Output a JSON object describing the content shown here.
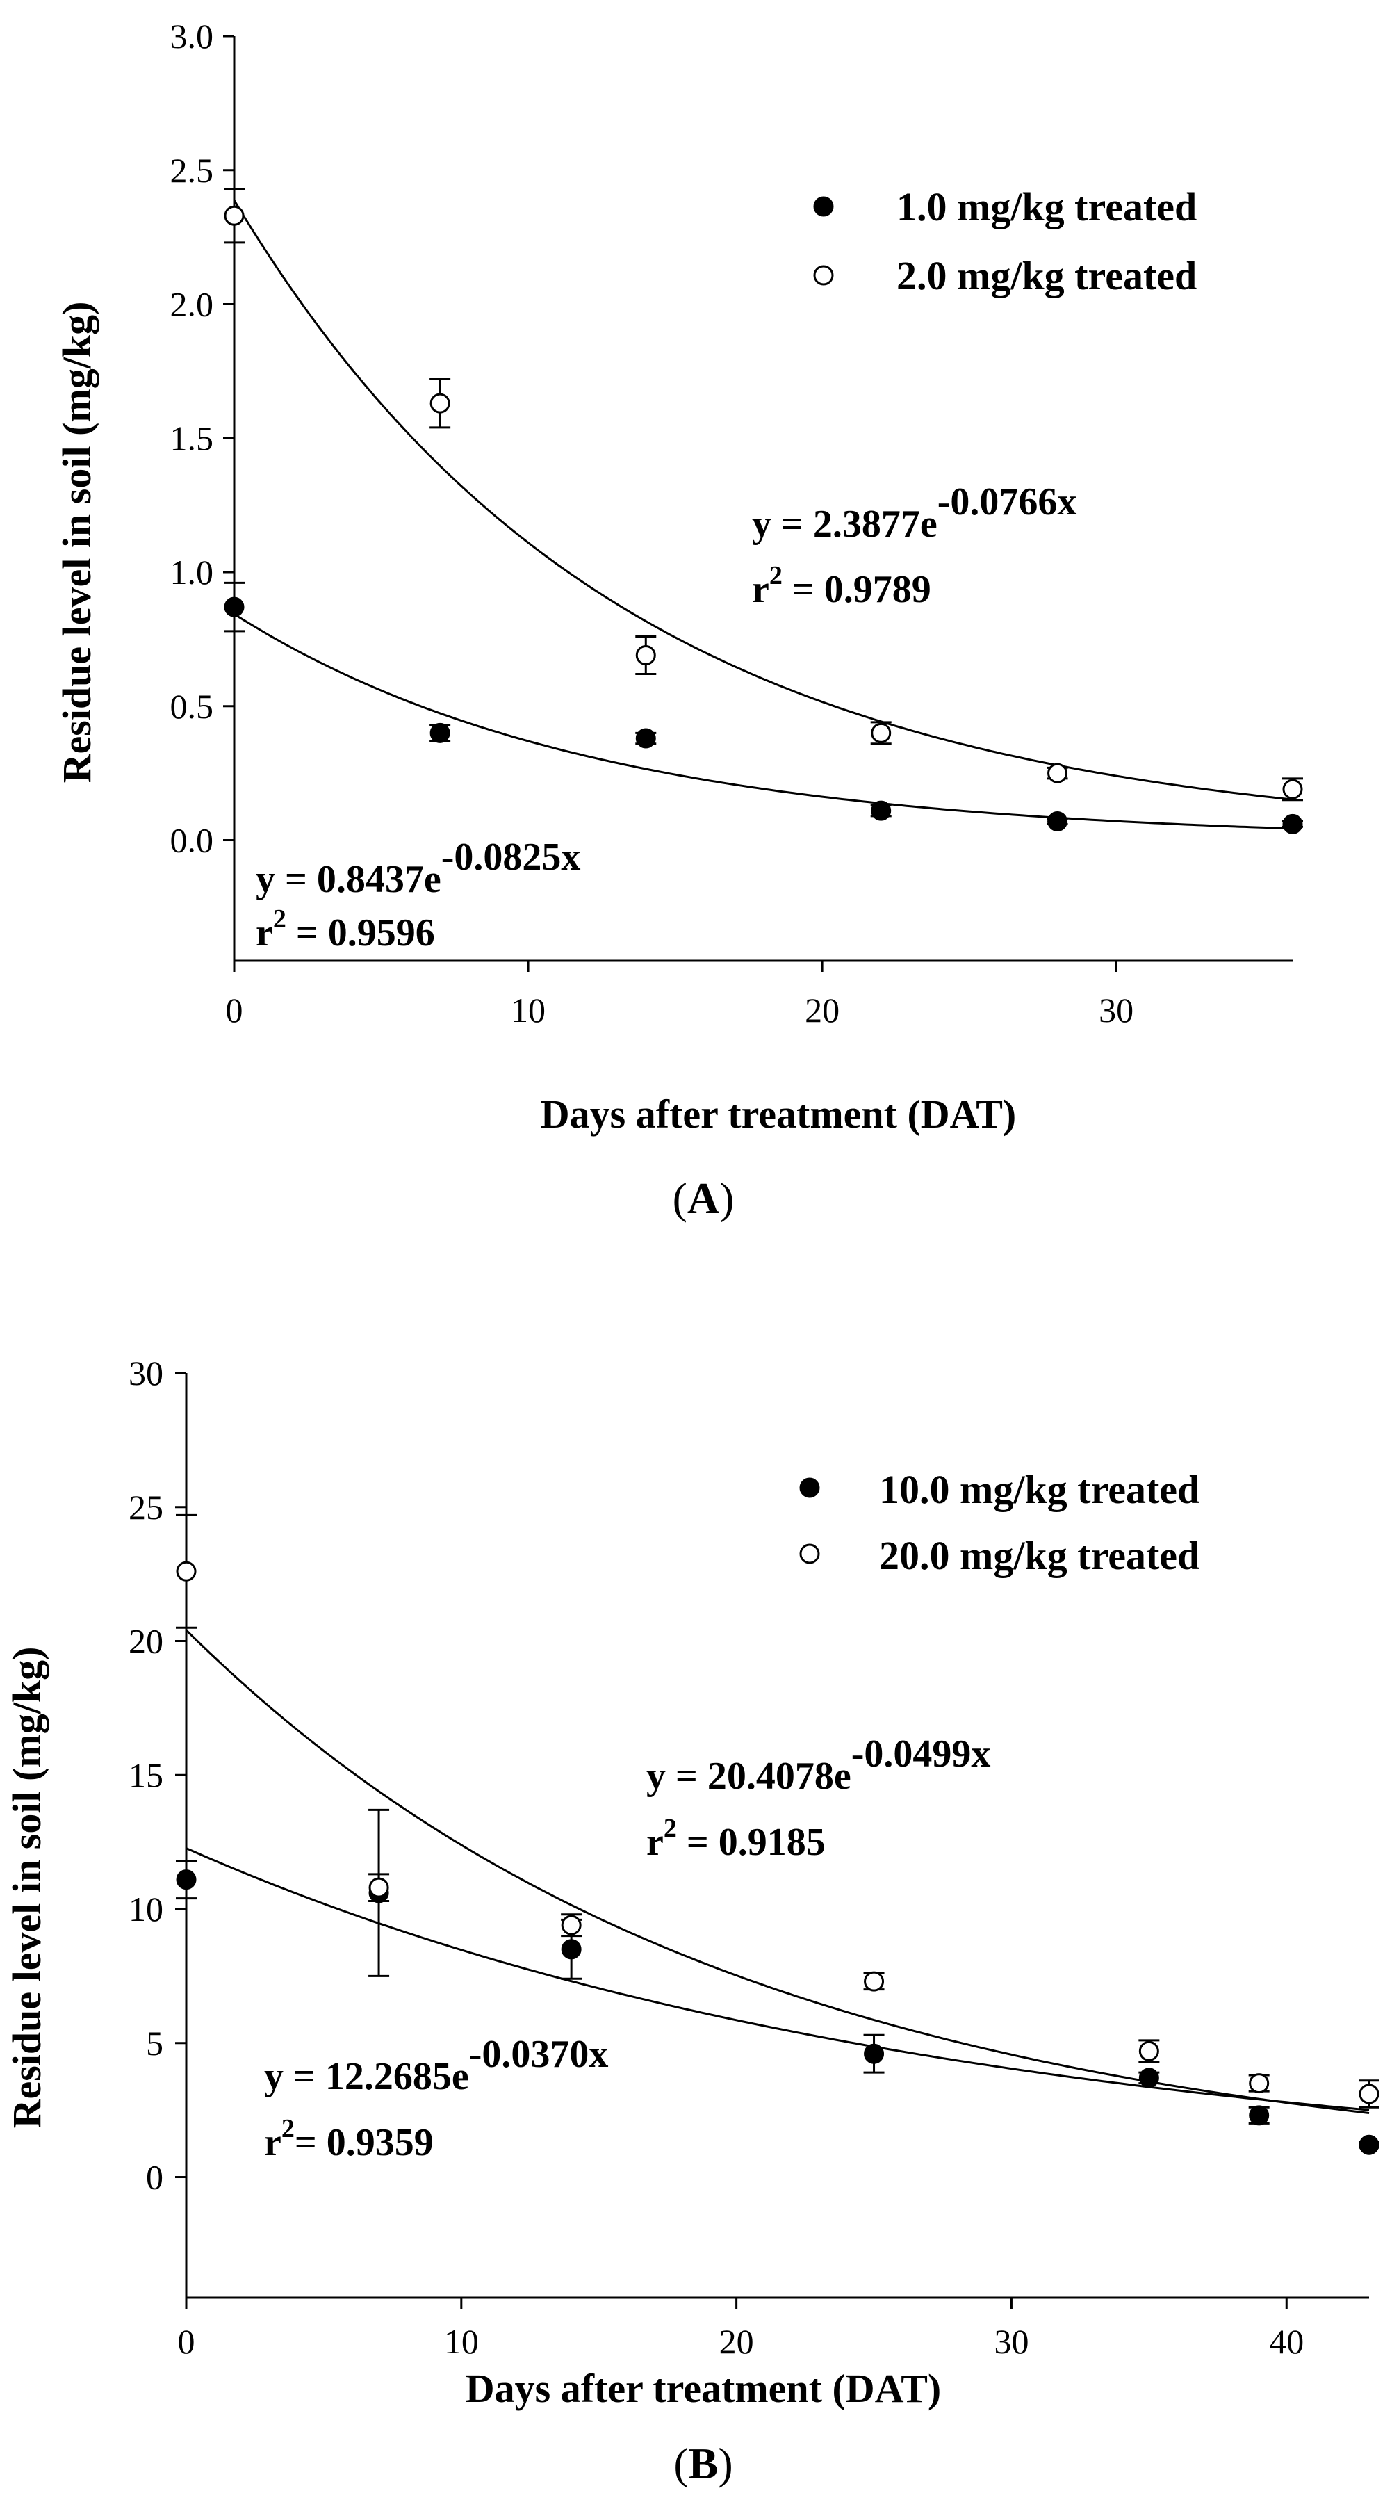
{
  "chart_data": [
    {
      "type": "scatter",
      "panel_label": "A",
      "xlabel": "Days after treatment (DAT)",
      "ylabel": "Residue level in soil (mg/kg)",
      "xlim": [
        0,
        36
      ],
      "ylim": [
        -0.45,
        3.0
      ],
      "xticks": [
        0,
        10,
        20,
        30
      ],
      "xtick_labels": [
        "0",
        "10",
        "20",
        "30"
      ],
      "yticks": [
        0.0,
        0.5,
        1.0,
        1.5,
        2.0,
        2.5,
        3.0
      ],
      "ytick_labels": [
        "0.0",
        "0.5",
        "1.0",
        "1.5",
        "2.0",
        "2.5",
        "3.0"
      ],
      "legend_position": "top-right",
      "series": [
        {
          "name": "1.0 mg/kg treated",
          "marker": "filled-circle",
          "x": [
            0,
            7,
            14,
            22,
            28,
            36
          ],
          "values": [
            0.87,
            0.4,
            0.38,
            0.11,
            0.07,
            0.06
          ],
          "errors": [
            0.09,
            0.03,
            0.02,
            0.02,
            0.01,
            0.01
          ],
          "fit": {
            "a": 0.8437,
            "b": -0.0825
          },
          "equation": {
            "prefix": "y = 0.8437e",
            "exponent": "-0.0825x",
            "r2_label": "r",
            "r2_sup": "2",
            "r2_value": " = 0.9596"
          }
        },
        {
          "name": "2.0 mg/kg treated",
          "marker": "open-circle",
          "x": [
            0,
            7,
            14,
            22,
            28,
            36
          ],
          "values": [
            2.33,
            1.63,
            0.69,
            0.4,
            0.25,
            0.19
          ],
          "errors": [
            0.1,
            0.09,
            0.07,
            0.04,
            0.02,
            0.04
          ],
          "fit": {
            "a": 2.3877,
            "b": -0.0766
          },
          "equation": {
            "prefix": "y = 2.3877e",
            "exponent": "-0.0766x",
            "r2_label": "r",
            "r2_sup": "2",
            "r2_value": " = 0.9789"
          }
        }
      ]
    },
    {
      "type": "scatter",
      "panel_label": "B",
      "xlabel": "Days after treatment (DAT)",
      "ylabel": "Residue level in soil (mg/kg)",
      "xlim": [
        0,
        43
      ],
      "ylim": [
        -4.5,
        30
      ],
      "xticks": [
        0,
        10,
        20,
        30,
        40
      ],
      "xtick_labels": [
        "0",
        "10",
        "20",
        "30",
        "40"
      ],
      "yticks": [
        0,
        5,
        10,
        15,
        20,
        25,
        30
      ],
      "ytick_labels": [
        "0",
        "5",
        "10",
        "15",
        "20",
        "25",
        "30"
      ],
      "legend_position": "top-right",
      "series": [
        {
          "name": "10.0 mg/kg treated",
          "marker": "filled-circle",
          "x": [
            0,
            7,
            14,
            25,
            35,
            39,
            43
          ],
          "values": [
            11.1,
            10.6,
            8.5,
            4.6,
            3.7,
            2.3,
            1.2
          ],
          "errors": [
            0.7,
            3.1,
            1.1,
            0.7,
            0.2,
            0.3,
            0.1
          ],
          "fit": {
            "a": 12.2685,
            "b": -0.037
          },
          "equation": {
            "prefix": "y = 12.2685e",
            "exponent": "-0.0370x",
            "r2_label": "r",
            "r2_sup": "2",
            "r2_value": "= 0.9359"
          }
        },
        {
          "name": "20.0 mg/kg treated",
          "marker": "open-circle",
          "x": [
            0,
            7,
            14,
            25,
            35,
            39,
            43
          ],
          "values": [
            22.6,
            10.8,
            9.4,
            7.3,
            4.7,
            3.5,
            3.1
          ],
          "errors": [
            2.1,
            0.5,
            0.4,
            0.3,
            0.4,
            0.3,
            0.5
          ],
          "fit": {
            "a": 20.4078,
            "b": -0.0499
          },
          "equation": {
            "prefix": "y = 20.4078e",
            "exponent": "-0.0499x",
            "r2_label": "r",
            "r2_sup": "2",
            "r2_value": " = 0.9185"
          }
        }
      ]
    }
  ]
}
